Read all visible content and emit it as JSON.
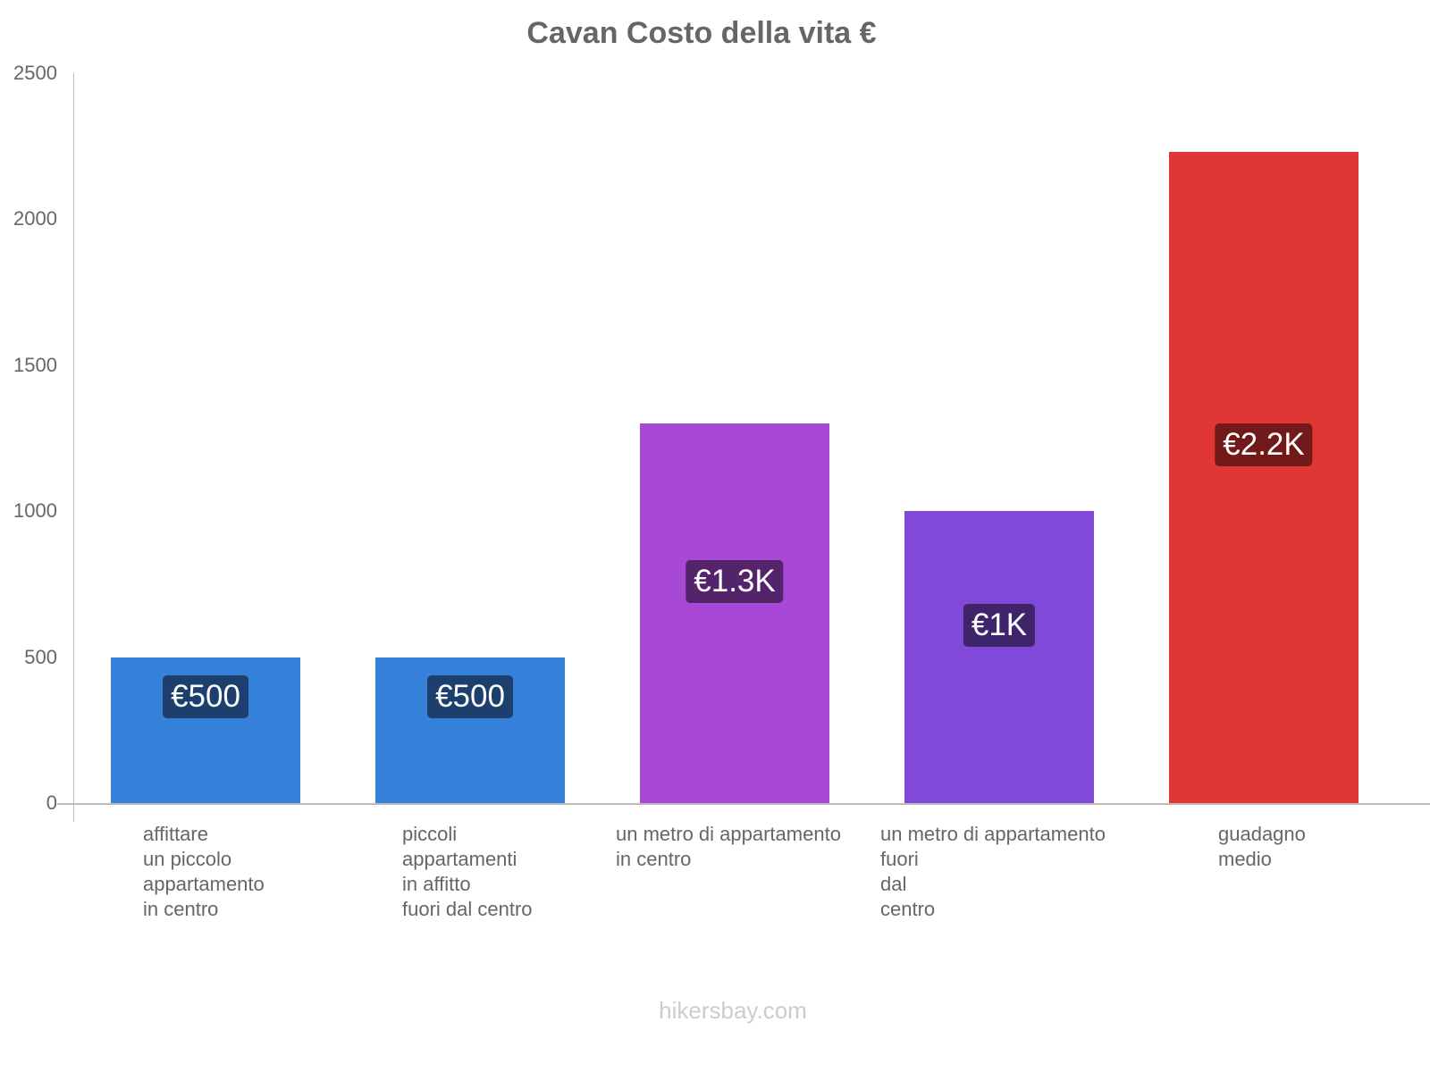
{
  "chart_data": {
    "type": "bar",
    "title": "Cavan Costo della vita €",
    "xlabel": "",
    "ylabel": "",
    "ylim": [
      0,
      2500
    ],
    "yticks": [
      0,
      500,
      1000,
      1500,
      2000,
      2500
    ],
    "grid": false,
    "legend": "none",
    "categories": [
      "affittare un piccolo appartamento in centro",
      "piccoli appartamenti in affitto fuori dal centro",
      "un metro di appartamento in centro",
      "un metro di appartamento fuori dal centro",
      "guadagno medio"
    ],
    "category_lines": [
      "affittare\nun piccolo\nappartamento\nin centro",
      "piccoli\nappartamenti\nin affitto\nfuori dal centro",
      "un metro di appartamento\nin centro",
      "un metro di appartamento\nfuori\ndal\ncentro",
      "guadagno\nmedio"
    ],
    "values": [
      500,
      500,
      1300,
      1000,
      2230
    ],
    "data_labels": [
      "€500",
      "€500",
      "€1.3K",
      "€1K",
      "€2.2K"
    ],
    "colors": [
      "#3682db",
      "#3682db",
      "#a748d6",
      "#8049d8",
      "#e03636"
    ],
    "label_bg_colors": [
      "#1d3f6d",
      "#1d3f6d",
      "#53246a",
      "#3f246b",
      "#721a1a"
    ]
  },
  "title": "Cavan Costo della vita €",
  "y_ticks": [
    "2500",
    "2000",
    "1500",
    "1000",
    "500",
    "0"
  ],
  "watermark": "hikersbay.com"
}
